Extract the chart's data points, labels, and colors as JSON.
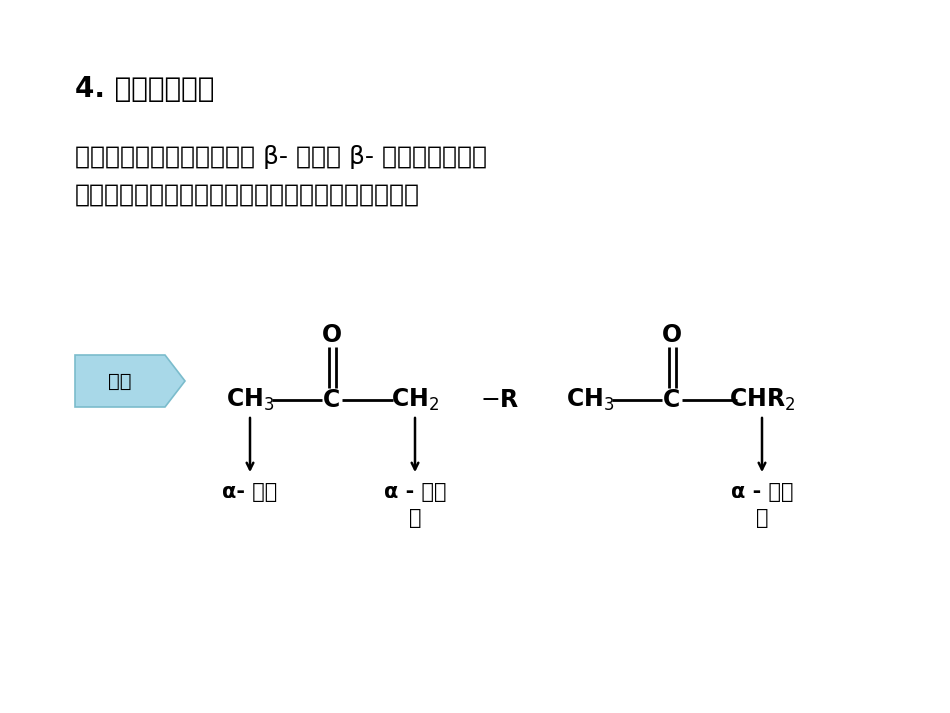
{
  "background_color": "#ffffff",
  "title_text": "4. 酯与酮的缩合",
  "title_fontsize": 20,
  "title_fontweight": "bold",
  "body_text": "很多酮或醛，可用酯酰化为 β- 二酮或 β- 酮醛。根据酮的\n结构及酰化剂的不同，其酰化的难易程度各有差别。",
  "body_fontsize": 18,
  "badge_text": "规律",
  "badge_color": "#a8d8e8",
  "badge_edge_color": "#7bbccc",
  "mol_fontsize": 17,
  "label_fontsize": 15,
  "arrow_lw": 1.8,
  "bond_lw": 2.0
}
